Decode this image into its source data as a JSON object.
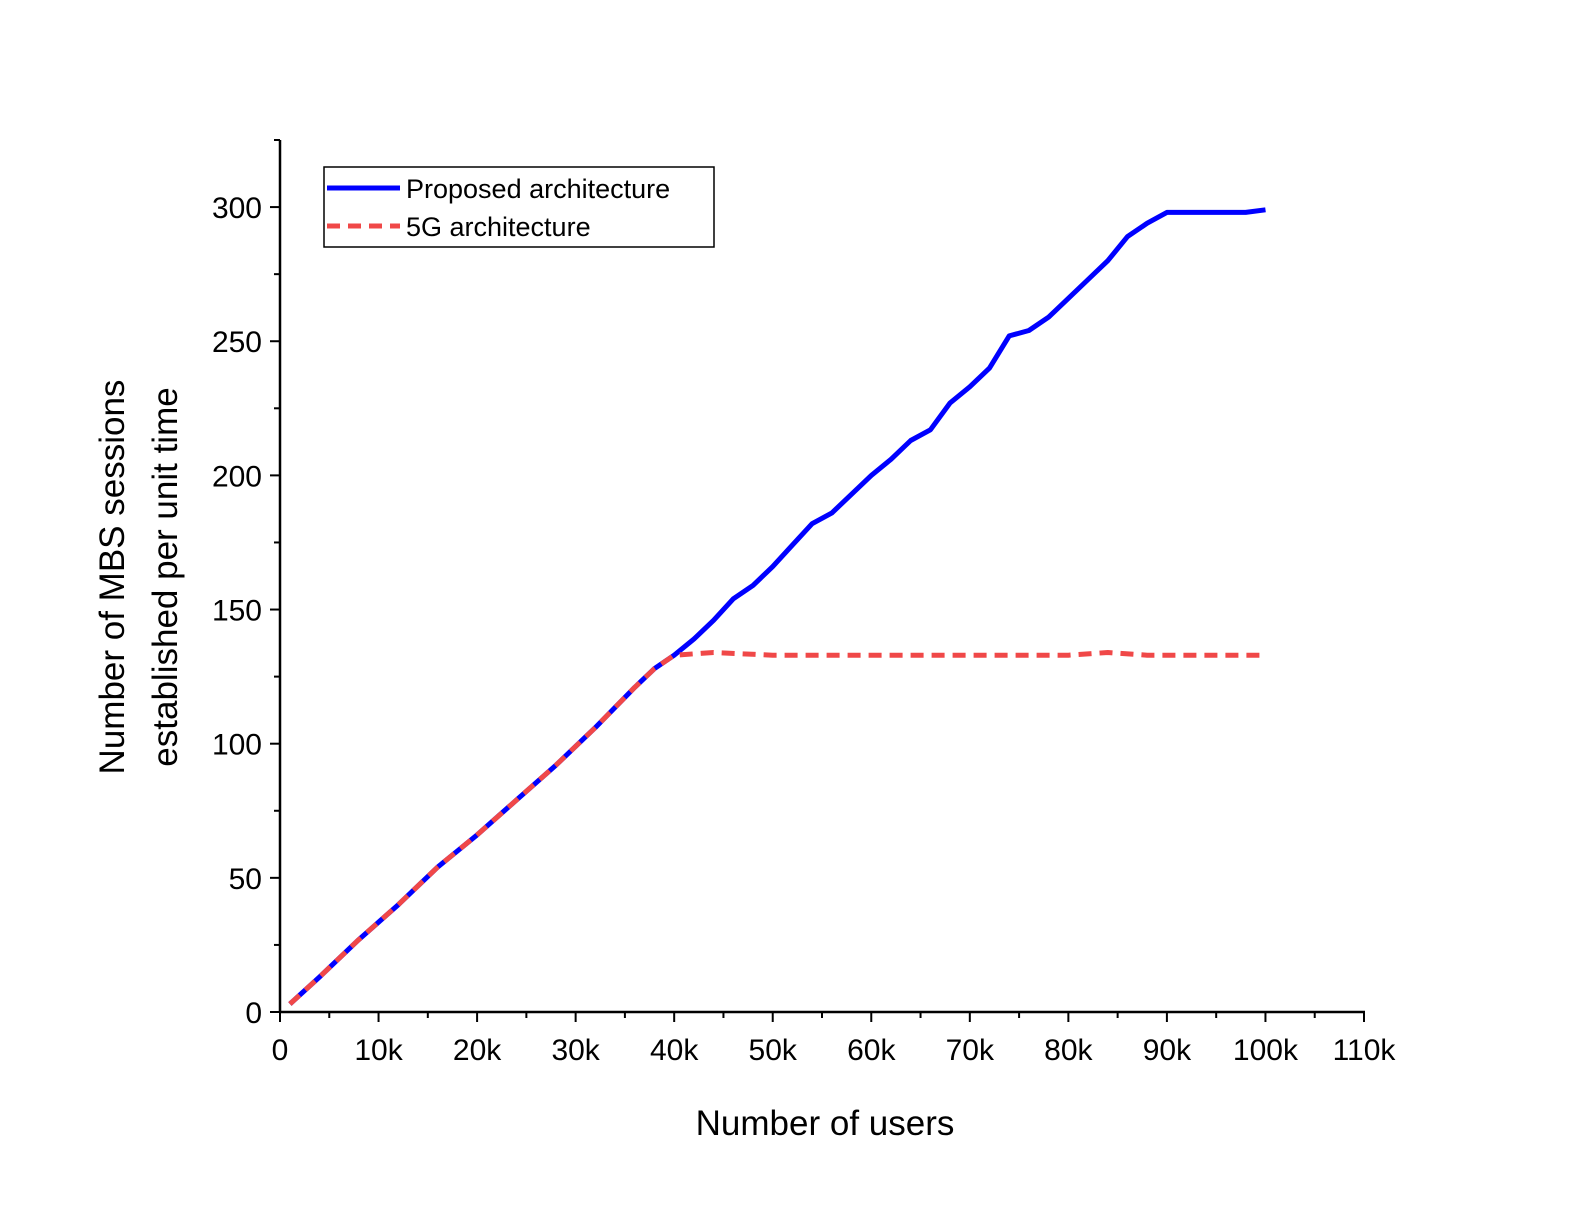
{
  "chart_data": {
    "type": "line",
    "xlabel": "Number of users",
    "ylabel_line1": "Number of MBS sessions",
    "ylabel_line2": "established per unit time",
    "xlim": [
      0,
      110000
    ],
    "ylim": [
      0,
      325
    ],
    "x_ticks": [
      0,
      10000,
      20000,
      30000,
      40000,
      50000,
      60000,
      70000,
      80000,
      90000,
      100000,
      110000
    ],
    "x_tick_labels": [
      "0",
      "10k",
      "20k",
      "30k",
      "40k",
      "50k",
      "60k",
      "70k",
      "80k",
      "90k",
      "100k",
      "110k"
    ],
    "y_ticks": [
      0,
      50,
      100,
      150,
      200,
      250,
      300
    ],
    "y_tick_labels": [
      "0",
      "50",
      "100",
      "150",
      "200",
      "250",
      "300"
    ],
    "grid": false,
    "legend_position": "top-left",
    "series": [
      {
        "name": "Proposed architecture",
        "color": "#0000ff",
        "style": "solid",
        "x": [
          1000,
          4000,
          8000,
          12000,
          16000,
          20000,
          24000,
          28000,
          32000,
          36000,
          38000,
          40000,
          42000,
          44000,
          46000,
          48000,
          50000,
          52000,
          54000,
          56000,
          58000,
          60000,
          62000,
          64000,
          66000,
          68000,
          70000,
          72000,
          74000,
          76000,
          78000,
          80000,
          82000,
          84000,
          86000,
          88000,
          90000,
          92000,
          94000,
          96000,
          98000,
          100000
        ],
        "y": [
          3,
          13,
          27,
          40,
          54,
          66,
          79,
          92,
          106,
          121,
          128,
          133,
          139,
          146,
          154,
          159,
          166,
          174,
          182,
          186,
          193,
          200,
          206,
          213,
          217,
          227,
          233,
          240,
          252,
          254,
          259,
          266,
          273,
          280,
          289,
          294,
          298,
          298,
          298,
          298,
          298,
          299
        ]
      },
      {
        "name": "5G architecture",
        "color": "#f04848",
        "style": "dashed",
        "x": [
          1000,
          4000,
          8000,
          12000,
          16000,
          20000,
          24000,
          28000,
          32000,
          36000,
          38000,
          40000,
          44000,
          50000,
          56000,
          62000,
          68000,
          74000,
          80000,
          84000,
          88000,
          94000,
          100000
        ],
        "y": [
          3,
          13,
          27,
          40,
          54,
          66,
          79,
          92,
          106,
          121,
          128,
          133,
          134,
          133,
          133,
          133,
          133,
          133,
          133,
          134,
          133,
          133,
          133
        ]
      }
    ]
  }
}
